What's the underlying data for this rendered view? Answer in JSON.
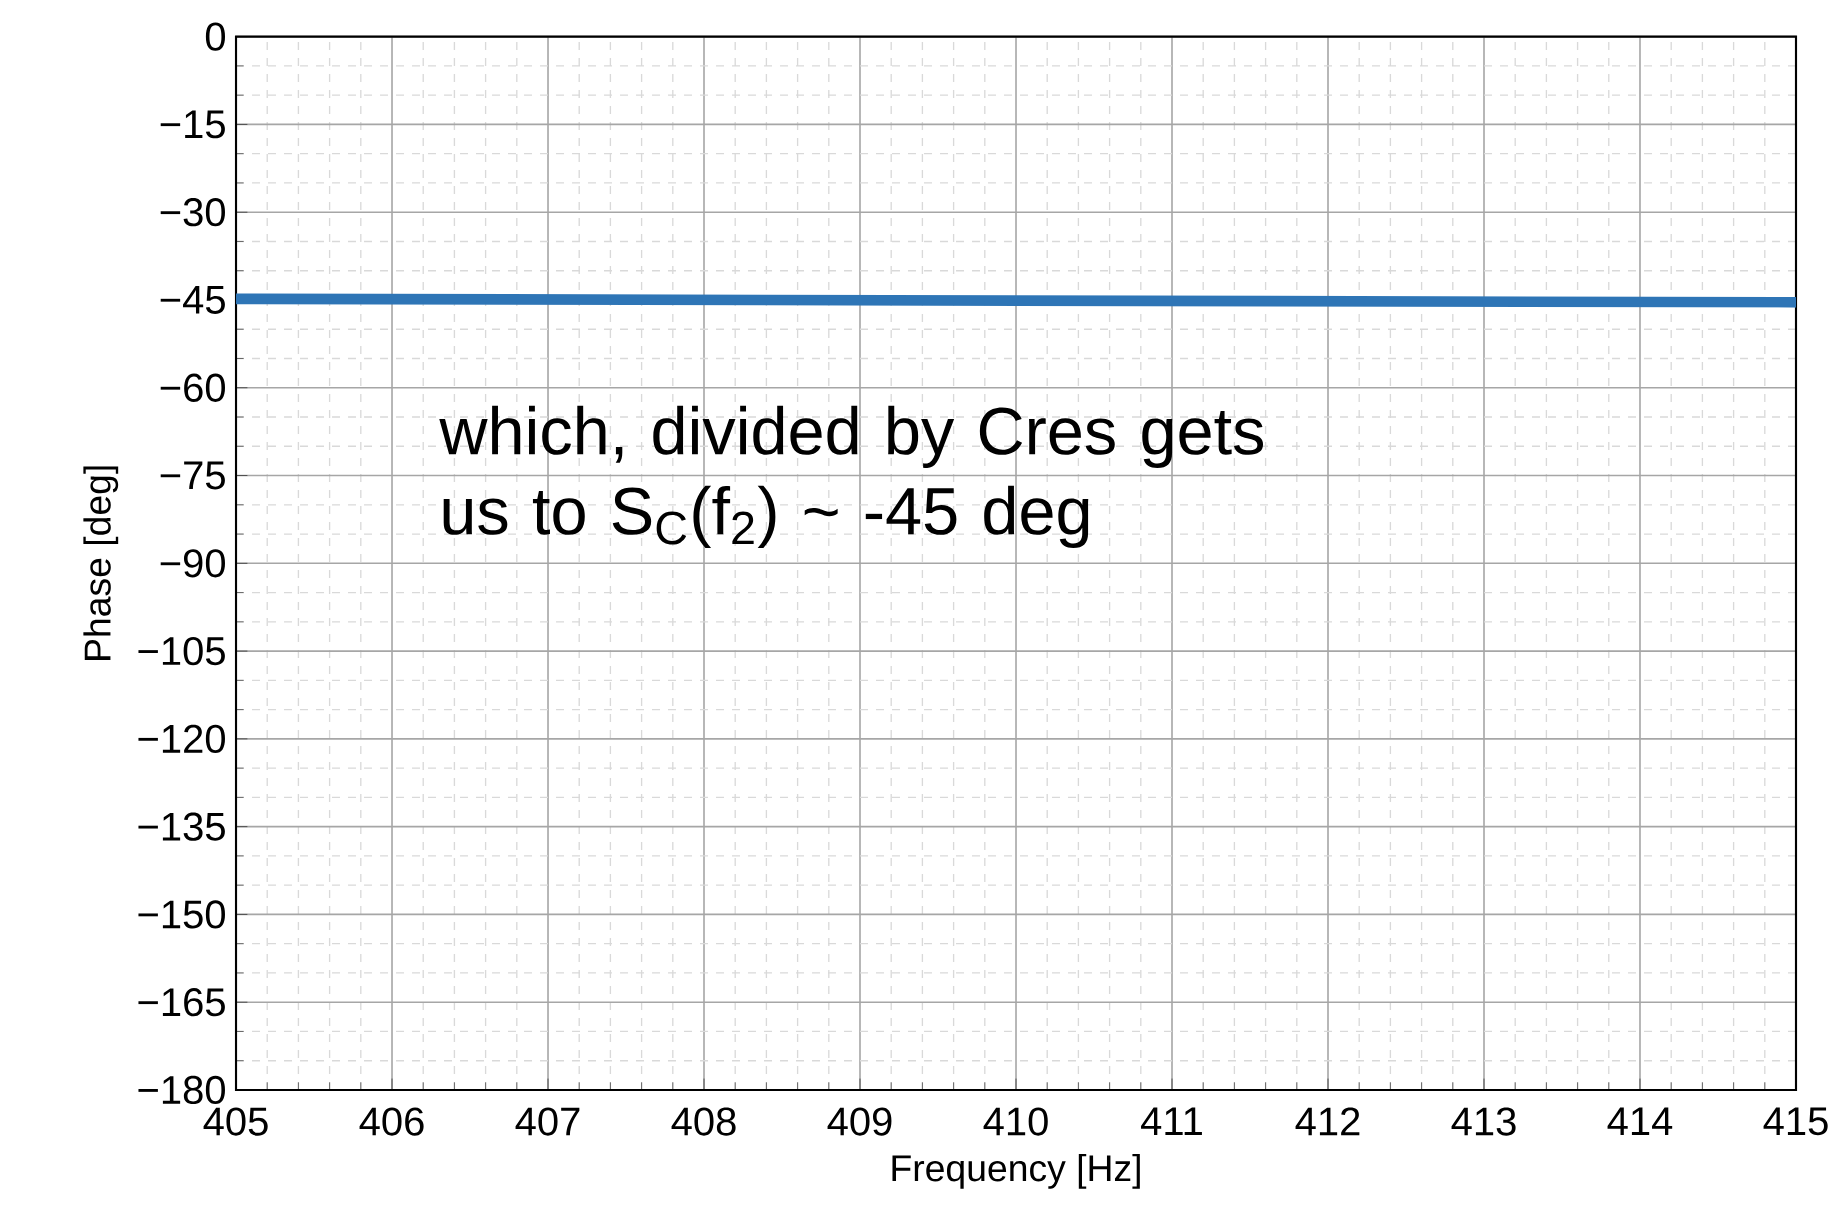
{
  "chart_data": {
    "type": "line",
    "xlabel": "Frequency [Hz]",
    "ylabel": "Phase [deg]",
    "x": [
      405,
      410,
      415
    ],
    "series": [
      {
        "color": "#2e75b6",
        "values": [
          -44.8,
          -45.1,
          -45.4
        ]
      }
    ],
    "xlim": [
      405,
      415
    ],
    "xticks": [
      405,
      406,
      407,
      408,
      409,
      410,
      411,
      412,
      413,
      414,
      415
    ],
    "ylim": [
      -180,
      0
    ],
    "yticks": [
      {
        "value": -180,
        "label": "−180"
      },
      {
        "value": -165,
        "label": "−165"
      },
      {
        "value": -150,
        "label": "−150"
      },
      {
        "value": -135,
        "label": "−135"
      },
      {
        "value": -120,
        "label": "−120"
      },
      {
        "value": -105,
        "label": "−105"
      },
      {
        "value": -90,
        "label": "−90"
      },
      {
        "value": -75,
        "label": "−75"
      },
      {
        "value": -60,
        "label": "−60"
      },
      {
        "value": -45,
        "label": "−45"
      },
      {
        "value": -30,
        "label": "−30"
      },
      {
        "value": -15,
        "label": "−15"
      },
      0
    ],
    "grid": true,
    "marker": "none",
    "line_style": "solid",
    "annotations": [
      "which, divided by Cres gets us to S$_{C}$(f$_{2}$) ~ -45 deg"
    ]
  }
}
